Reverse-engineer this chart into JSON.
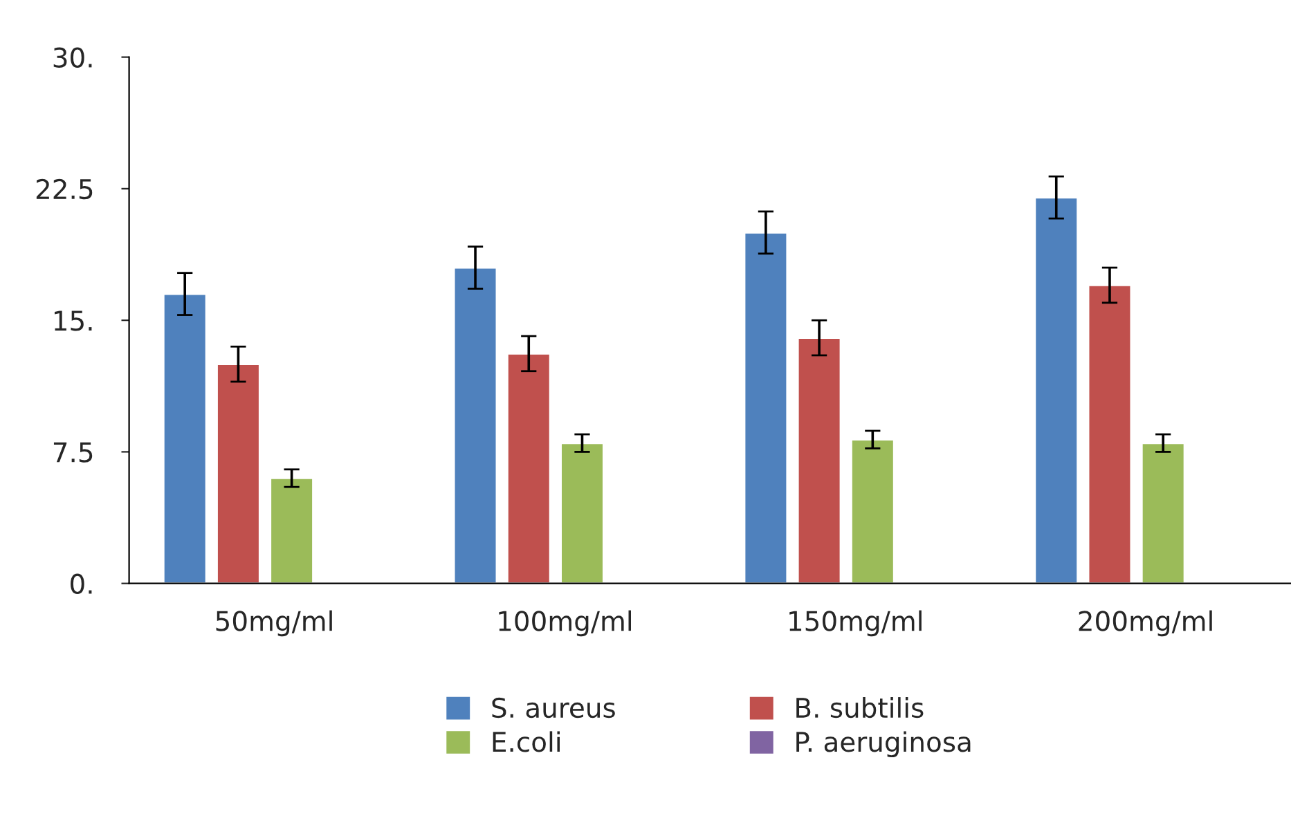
{
  "chart_data": {
    "type": "bar",
    "categories": [
      "50mg/ml",
      "100mg/ml",
      "150mg/ml",
      "200mg/ml"
    ],
    "series": [
      {
        "name": "S. aureus",
        "color": "#4f81bd",
        "values": [
          16.5,
          18.0,
          20.0,
          22.0
        ],
        "errors": [
          1.2,
          1.2,
          1.2,
          1.2
        ]
      },
      {
        "name": "B. subtilis",
        "color": "#c0504d",
        "values": [
          12.5,
          13.1,
          14.0,
          17.0
        ],
        "errors": [
          1.0,
          1.0,
          1.0,
          1.0
        ]
      },
      {
        "name": "E.coli",
        "color": "#9bbb59",
        "values": [
          6.0,
          8.0,
          8.2,
          8.0
        ],
        "errors": [
          0.5,
          0.5,
          0.5,
          0.5
        ]
      },
      {
        "name": "P. aeruginosa",
        "color": "#8064a2",
        "values": [
          null,
          null,
          null,
          null
        ]
      }
    ],
    "ylim": [
      0,
      30
    ],
    "yticks": [
      {
        "value": 0,
        "label": "0."
      },
      {
        "value": 7.5,
        "label": "7.5"
      },
      {
        "value": 15,
        "label": "15."
      },
      {
        "value": 22.5,
        "label": "22.5"
      },
      {
        "value": 30,
        "label": "30."
      }
    ],
    "grid": false,
    "legend": "bottom"
  }
}
